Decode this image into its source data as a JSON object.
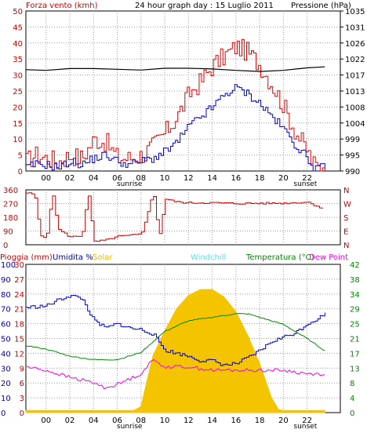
{
  "colors": {
    "frame": "#000000",
    "wind": "#ee0000",
    "gust_avg": "#0000cc",
    "pressure": "#000000",
    "direction": "#cc0000",
    "rain": "#ee0000",
    "humidity": "#0000cc",
    "solar": "#f5c400",
    "windchill": "#66ffff",
    "temperature": "#008800",
    "dewpoint": "#ee00ee"
  },
  "chart_data": [
    {
      "type": "line",
      "title": "24 hour graph day : 15 Luglio 2011",
      "left_label": "Forza vento (kmh)",
      "right_label": "Pressione (hPa)",
      "x_ticks": [
        "00",
        "02",
        "04",
        "06",
        "08",
        "10",
        "12",
        "14",
        "16",
        "18",
        "20",
        "22"
      ],
      "x_markers": [
        "sunrise",
        "sunset"
      ],
      "xlim": [
        -1.7,
        24.8
      ],
      "ylim": [
        0,
        50
      ],
      "y_ticks": [
        "0",
        "5",
        "10",
        "15",
        "20",
        "25",
        "30",
        "35",
        "40",
        "45",
        "50"
      ],
      "y2lim": [
        990,
        1035
      ],
      "y2_ticks": [
        "990",
        "995",
        "999",
        "1004",
        "1008",
        "1013",
        "1017",
        "1022",
        "1026",
        "1031",
        "1035"
      ],
      "series": [
        {
          "key": "wind",
          "x": [
            -1.7,
            -1,
            0,
            1,
            2,
            3,
            4,
            5,
            6,
            7,
            8,
            9,
            10,
            11,
            12,
            13,
            14,
            15,
            16,
            17,
            18,
            19,
            20,
            21,
            22,
            22.5,
            23,
            23.5
          ],
          "values": [
            3,
            5,
            4,
            3,
            5,
            4,
            10,
            9,
            4,
            4,
            5,
            8,
            12,
            17,
            24,
            28,
            33,
            36,
            39,
            37,
            33,
            27,
            20,
            12,
            6,
            2,
            1,
            3
          ]
        },
        {
          "key": "gust_avg",
          "x": [
            -1.7,
            -1,
            0,
            1,
            2,
            3,
            4,
            5,
            6,
            7,
            8,
            9,
            10,
            11,
            12,
            13,
            14,
            15,
            16,
            17,
            18,
            19,
            20,
            21,
            22,
            22.5,
            23,
            23.5
          ],
          "values": [
            1,
            2,
            2,
            1,
            3,
            2,
            4,
            5,
            3,
            2,
            3,
            4,
            6,
            9,
            14,
            17,
            20,
            24,
            26,
            24,
            21,
            17,
            13,
            8,
            4,
            1,
            1,
            1
          ]
        },
        {
          "key": "pressure",
          "x": [
            -1.7,
            0,
            2,
            4,
            6,
            8,
            10,
            12,
            14,
            16,
            18,
            20,
            22,
            23.5
          ],
          "values": [
            1018.5,
            1018.3,
            1018.8,
            1018.8,
            1018.6,
            1018.4,
            1018.9,
            1018.9,
            1018.7,
            1018.3,
            1018.0,
            1018.3,
            1019.0,
            1019.3
          ]
        }
      ]
    },
    {
      "type": "line",
      "ylim": [
        0,
        360
      ],
      "y_ticks": [
        "0",
        "90",
        "180",
        "270",
        "360"
      ],
      "y2_ticks": [
        "N",
        "E",
        "S",
        "W",
        "N"
      ],
      "series": [
        {
          "key": "direction",
          "x": [
            -1.7,
            -1,
            -0.5,
            0,
            0.5,
            1,
            2,
            3,
            3.5,
            4,
            5,
            6,
            7,
            8,
            9,
            9.5,
            10,
            11,
            12,
            14,
            16,
            18,
            20,
            22,
            23.5
          ],
          "values": [
            340,
            330,
            60,
            50,
            345,
            100,
            50,
            60,
            350,
            20,
            30,
            55,
            60,
            70,
            345,
            50,
            300,
            280,
            275,
            275,
            270,
            272,
            272,
            280,
            230
          ]
        }
      ]
    },
    {
      "type": "area",
      "labels": [
        "Pioggia (mm)",
        "Umidita %",
        "Solar",
        "Windchill",
        "Temperatura (°C)",
        "Dew Point"
      ],
      "ylim": [
        0,
        100
      ],
      "y_ticks": [
        "0",
        "10",
        "20",
        "30",
        "40",
        "50",
        "60",
        "70",
        "80",
        "90",
        "100"
      ],
      "y_ticks_rain": [
        "0",
        "3",
        "6",
        "9",
        "12",
        "15",
        "18",
        "21",
        "24",
        "27",
        "30"
      ],
      "y2lim": [
        0,
        42
      ],
      "y2_ticks": [
        "0",
        "4",
        "8",
        "13",
        "17",
        "21",
        "25",
        "29",
        "34",
        "38",
        "42"
      ],
      "x_ticks": [
        "00",
        "02",
        "04",
        "06",
        "08",
        "10",
        "12",
        "14",
        "16",
        "18",
        "20",
        "22"
      ],
      "x_markers": [
        "sunrise",
        "sunset"
      ],
      "series": [
        {
          "key": "humidity",
          "x": [
            -1.7,
            0,
            1,
            2,
            3,
            4,
            5,
            6,
            7,
            8,
            9,
            10,
            11,
            12,
            13,
            14,
            15,
            16,
            17,
            18,
            19,
            20,
            21,
            22,
            23,
            23.5
          ],
          "values": [
            71,
            72,
            76,
            79,
            77,
            62,
            57,
            60,
            57,
            56,
            53,
            42,
            40,
            38,
            35,
            35,
            32,
            33,
            37,
            42,
            48,
            51,
            54,
            60,
            64,
            67
          ]
        },
        {
          "key": "temperature",
          "x": [
            -1.7,
            0,
            2,
            4,
            6,
            8,
            10,
            12,
            14,
            16,
            17,
            18,
            20,
            22,
            23.5
          ],
          "values": [
            19,
            18,
            16,
            15,
            15,
            17,
            23,
            26,
            27,
            28,
            28,
            27,
            25,
            21,
            17.5
          ]
        },
        {
          "key": "dewpoint",
          "x": [
            -1.7,
            0,
            2,
            4,
            5,
            6,
            8,
            9,
            10,
            12,
            14,
            16,
            18,
            20,
            22,
            23.5
          ],
          "values": [
            13,
            12,
            10,
            8.5,
            7,
            8,
            11,
            15,
            13,
            13,
            12,
            12,
            12,
            12,
            11,
            11
          ]
        },
        {
          "key": "solar",
          "x": [
            -1.7,
            7.4,
            8.0,
            9,
            10,
            11,
            12,
            13,
            14,
            15,
            16,
            17,
            18,
            19,
            19.6,
            20,
            23.5
          ],
          "values": [
            1.5,
            1.5,
            4,
            38,
            55,
            70,
            79,
            83,
            83,
            78,
            68,
            52,
            33,
            10,
            2,
            1.5,
            1.5
          ]
        }
      ]
    }
  ]
}
